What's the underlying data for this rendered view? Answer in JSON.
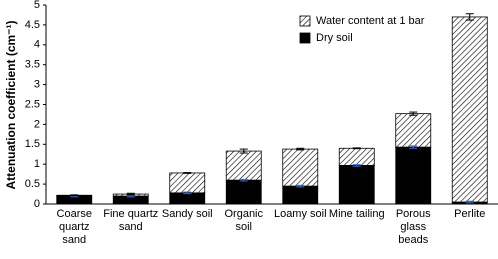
{
  "chart_data": {
    "type": "stacked_bar",
    "y_label": "Attenuation coefficient (cm⁻¹)",
    "categories": [
      "Coarse quartz sand",
      "Fine quartz sand",
      "Sandy soil",
      "Organic soil",
      "Loamy soil",
      "Mine tailing",
      "Porous glass beads",
      "Perlite"
    ],
    "series": [
      {
        "name": "Water content at 1 bar",
        "color": "#000000",
        "hatch": true,
        "error_color": "#000000",
        "values": [
          0.02,
          0.05,
          0.5,
          0.73,
          0.93,
          0.43,
          0.84,
          4.65
        ],
        "errors": [
          0.01,
          0.02,
          0.01,
          0.05,
          0.02,
          0.01,
          0.04,
          0.08
        ]
      },
      {
        "name": "Dry soil",
        "color": "#000000",
        "hatch": false,
        "error_color": "#3a6fd8",
        "values": [
          0.2,
          0.2,
          0.28,
          0.6,
          0.45,
          0.97,
          1.43,
          0.05
        ],
        "errors": [
          0.02,
          0.02,
          0.02,
          0.02,
          0.02,
          0.02,
          0.03,
          0.02
        ]
      }
    ],
    "ylim": [
      0,
      5
    ],
    "yticks": [
      0,
      0.5,
      1,
      1.5,
      2,
      2.5,
      3,
      3.5,
      4,
      4.5,
      5
    ],
    "legend": "top-right"
  }
}
